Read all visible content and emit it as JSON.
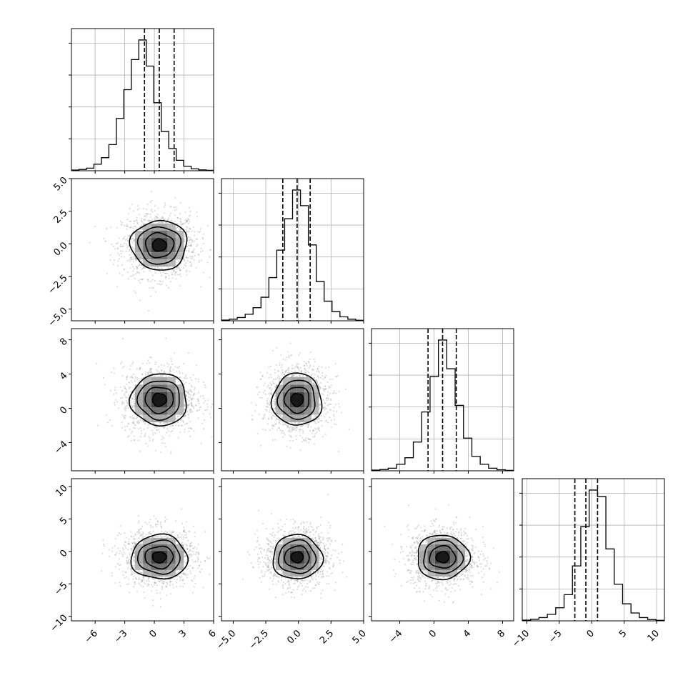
{
  "chart_data": {
    "type": "corner",
    "title": "",
    "grid": true,
    "variables": [
      {
        "range": [
          -8.4,
          6.0
        ],
        "ticks": [
          -6,
          -3,
          0,
          3,
          6
        ],
        "tick_labels": [
          "−6",
          "−3",
          "0",
          "3",
          "6"
        ],
        "mean": 0.5,
        "sd": 1.5,
        "quantiles": [
          -1.0,
          0.5,
          2.0
        ]
      },
      {
        "range": [
          -5.9,
          5.0
        ],
        "ticks": [
          -5.0,
          -2.5,
          0.0,
          2.5,
          5.0
        ],
        "tick_labels": [
          "−5.0",
          "−2.5",
          "0.0",
          "2.5",
          "5.0"
        ],
        "mean": -0.1,
        "sd": 1.0,
        "quantiles": [
          -1.2,
          -0.1,
          0.9
        ]
      },
      {
        "range": [
          -7.3,
          9.3
        ],
        "ticks": [
          -4,
          0,
          4,
          8
        ],
        "tick_labels": [
          "−4",
          "0",
          "4",
          "8"
        ],
        "mean": 1.0,
        "sd": 1.6,
        "quantiles": [
          -0.7,
          1.0,
          2.6
        ]
      },
      {
        "range": [
          -10.7,
          11.2
        ],
        "ticks": [
          -10,
          -5,
          0,
          5,
          10
        ],
        "tick_labels": [
          "−10",
          "−5",
          "0",
          "5",
          "10"
        ],
        "mean": -0.9,
        "sd": 1.8,
        "quantiles": [
          -2.6,
          -0.9,
          0.9
        ]
      }
    ],
    "diag_histograms": [
      {
        "counts": [
          0.005,
          0.01,
          0.02,
          0.05,
          0.1,
          0.2,
          0.4,
          0.62,
          0.85,
          1.0,
          0.8,
          0.52,
          0.3,
          0.17,
          0.08,
          0.035,
          0.015,
          0.007,
          0.003
        ]
      },
      {
        "counts": [
          0.005,
          0.012,
          0.025,
          0.05,
          0.1,
          0.18,
          0.33,
          0.54,
          0.78,
          1.0,
          0.88,
          0.58,
          0.3,
          0.15,
          0.07,
          0.03,
          0.012,
          0.004
        ]
      },
      {
        "counts": [
          0.005,
          0.01,
          0.02,
          0.05,
          0.1,
          0.22,
          0.45,
          0.72,
          1.0,
          0.78,
          0.5,
          0.25,
          0.11,
          0.05,
          0.02,
          0.008,
          0.003
        ]
      },
      {
        "counts": [
          0.005,
          0.012,
          0.025,
          0.05,
          0.1,
          0.2,
          0.42,
          0.72,
          1.0,
          0.95,
          0.55,
          0.28,
          0.13,
          0.06,
          0.025,
          0.01,
          0.004
        ]
      }
    ],
    "contour_levels_sigma": [
      0.5,
      1.0,
      1.5,
      2.0
    ],
    "point_color": "#9e9e9e",
    "line_color": "#000000",
    "grid_color": "#b0b0b0"
  }
}
